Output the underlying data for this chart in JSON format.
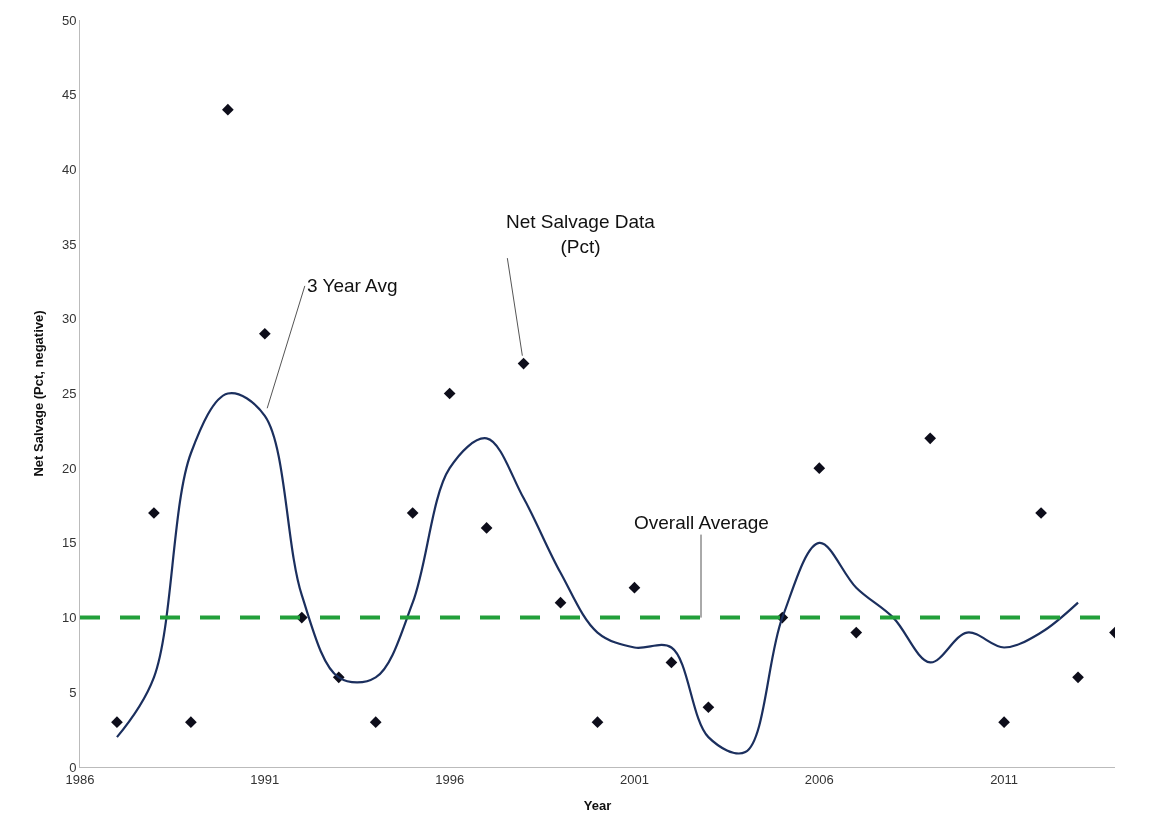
{
  "chart_data": {
    "type": "scatter",
    "xlabel": "Year",
    "ylabel": "Net Salvage (Pct, negative)",
    "xlim": [
      1986,
      2014
    ],
    "xticks": [
      1986,
      1991,
      1996,
      2001,
      2006,
      2011
    ],
    "ylim": [
      0,
      50
    ],
    "yticks": [
      0,
      5,
      10,
      15,
      20,
      25,
      30,
      35,
      40,
      45,
      50
    ],
    "grid": false,
    "series": [
      {
        "marker": "diamond",
        "color": "#0d0d1a",
        "x": [
          1987,
          1988,
          1989,
          1990,
          1991,
          1992,
          1993,
          1994,
          1995,
          1996,
          1997,
          1998,
          1999,
          2000,
          2001,
          2002,
          2003,
          2005,
          2006,
          2007,
          2009,
          2011,
          2012,
          2013,
          2014
        ],
        "values": [
          3,
          17,
          3,
          44,
          29,
          10,
          6,
          3,
          17,
          25,
          16,
          27,
          11,
          3,
          12,
          7,
          4,
          10,
          20,
          9,
          22,
          3,
          17,
          6,
          9
        ]
      },
      {
        "type": "line",
        "line_style": "solid",
        "color": "#1b2f5e",
        "x": [
          1987,
          1988,
          1989,
          1990,
          1991,
          1992,
          1993,
          1994,
          1995,
          1996,
          1997,
          1998,
          1999,
          2000,
          2001,
          2002,
          2003,
          2004,
          2005,
          2006,
          2007,
          2008,
          2009,
          2010,
          2011,
          2012,
          2013
        ],
        "values": [
          2,
          6,
          21,
          25,
          23.5,
          11.5,
          6,
          6,
          11,
          20,
          22,
          18,
          13,
          9,
          8,
          8,
          2,
          1,
          10,
          15,
          12,
          10,
          7,
          9,
          8,
          9,
          11
        ]
      }
    ],
    "ref_lines": [
      {
        "axis": "y",
        "value": 10,
        "label": "Overall Average",
        "color": "#22a03a",
        "line_style": "dashed"
      }
    ],
    "annotations": [
      {
        "text": "3 Year Avg",
        "x": 1991,
        "y": 23.5
      },
      {
        "text": "Net Salvage Data\n(Pct)",
        "x": 1998,
        "y": 27
      }
    ]
  }
}
